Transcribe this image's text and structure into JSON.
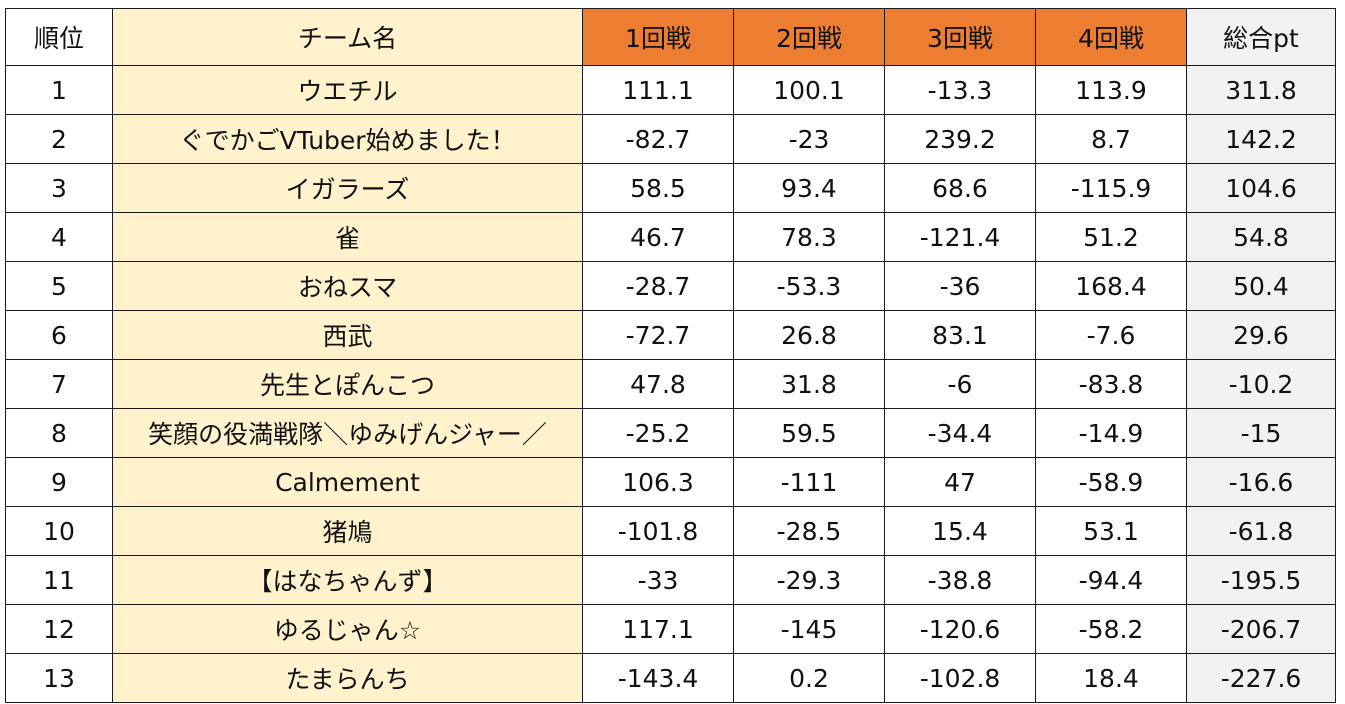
{
  "table": {
    "headers": {
      "rank": "順位",
      "team": "チーム名",
      "round1": "1回戦",
      "round2": "2回戦",
      "round3": "3回戦",
      "round4": "4回戦",
      "total": "総合pt"
    },
    "rows": [
      {
        "rank": "1",
        "team": "ウエチル",
        "r1": "111.1",
        "r2": "100.1",
        "r3": "-13.3",
        "r4": "113.9",
        "total": "311.8"
      },
      {
        "rank": "2",
        "team": "ぐでかごVTuber始めました！",
        "r1": "-82.7",
        "r2": "-23",
        "r3": "239.2",
        "r4": "8.7",
        "total": "142.2"
      },
      {
        "rank": "3",
        "team": "イガラーズ",
        "r1": "58.5",
        "r2": "93.4",
        "r3": "68.6",
        "r4": "-115.9",
        "total": "104.6"
      },
      {
        "rank": "4",
        "team": "雀",
        "r1": "46.7",
        "r2": "78.3",
        "r3": "-121.4",
        "r4": "51.2",
        "total": "54.8"
      },
      {
        "rank": "5",
        "team": "おねスマ",
        "r1": "-28.7",
        "r2": "-53.3",
        "r3": "-36",
        "r4": "168.4",
        "total": "50.4"
      },
      {
        "rank": "6",
        "team": "西武",
        "r1": "-72.7",
        "r2": "26.8",
        "r3": "83.1",
        "r4": "-7.6",
        "total": "29.6"
      },
      {
        "rank": "7",
        "team": "先生とぽんこつ",
        "r1": "47.8",
        "r2": "31.8",
        "r3": "-6",
        "r4": "-83.8",
        "total": "-10.2"
      },
      {
        "rank": "8",
        "team": "笑顔の役満戦隊＼ゆみげんジャー／",
        "r1": "-25.2",
        "r2": "59.5",
        "r3": "-34.4",
        "r4": "-14.9",
        "total": "-15"
      },
      {
        "rank": "9",
        "team": "Calmement",
        "r1": "106.3",
        "r2": "-111",
        "r3": "47",
        "r4": "-58.9",
        "total": "-16.6"
      },
      {
        "rank": "10",
        "team": "猪鳩",
        "r1": "-101.8",
        "r2": "-28.5",
        "r3": "15.4",
        "r4": "53.1",
        "total": "-61.8"
      },
      {
        "rank": "11",
        "team": "【はなちゃんず】",
        "r1": "-33",
        "r2": "-29.3",
        "r3": "-38.8",
        "r4": "-94.4",
        "total": "-195.5"
      },
      {
        "rank": "12",
        "team": "ゆるじゃん☆",
        "r1": "117.1",
        "r2": "-145",
        "r3": "-120.6",
        "r4": "-58.2",
        "total": "-206.7"
      },
      {
        "rank": "13",
        "team": "たまらんち",
        "r1": "-143.4",
        "r2": "0.2",
        "r3": "-102.8",
        "r4": "18.4",
        "total": "-227.6"
      }
    ]
  },
  "colors": {
    "round_header_bg": "#ed7d31",
    "round_header_text": "#ffffff",
    "team_column_bg": "#fff2cc",
    "total_column_bg": "#f2f2f2",
    "border": "#1a1a1a"
  }
}
